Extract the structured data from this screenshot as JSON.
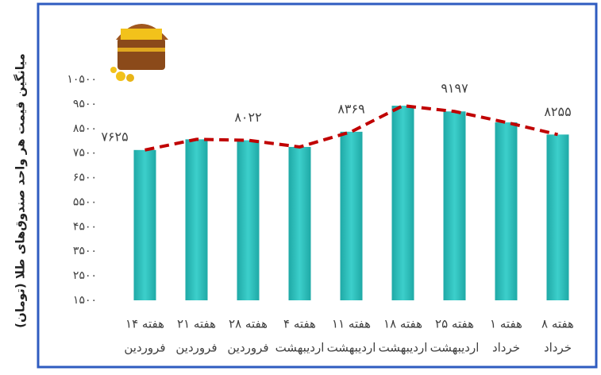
{
  "chart_data": {
    "type": "bar",
    "y_axis_label": "میانگین قیمت هر واحد صندوق‌های طلا (تومان)",
    "categories": [
      [
        "هفته ۱۴",
        "فروردین"
      ],
      [
        "هفته ۲۱",
        "فروردین"
      ],
      [
        "هفته ۲۸",
        "فروردین"
      ],
      [
        "هفته ۴",
        "اردیبهشت"
      ],
      [
        "هفته ۱۱",
        "اردیبهشت"
      ],
      [
        "هفته ۱۸",
        "اردیبهشت"
      ],
      [
        "هفته ۲۵",
        "اردیبهشت"
      ],
      [
        "هفته ۱",
        "خرداد"
      ],
      [
        "هفته ۸",
        "خرداد"
      ]
    ],
    "values": [
      7625,
      8060,
      8022,
      7750,
      8369,
      9430,
      9197,
      8750,
      8255
    ],
    "value_labels": [
      "۷۶۲۵",
      null,
      "۸۰۲۲",
      null,
      "۸۳۶۹",
      null,
      "۹۱۹۷",
      null,
      "۸۲۵۵"
    ],
    "color": "#2bb8b4",
    "line_color": "#c00000",
    "ylim": [
      1500,
      10500
    ],
    "yticks": [
      {
        "value": 1500,
        "label": "۱۵۰۰"
      },
      {
        "value": 2500,
        "label": "۲۵۰۰"
      },
      {
        "value": 3500,
        "label": "۳۵۰۰"
      },
      {
        "value": 4500,
        "label": "۴۵۰۰"
      },
      {
        "value": 5500,
        "label": "۵۵۰۰"
      },
      {
        "value": 6500,
        "label": "۶۵۰۰"
      },
      {
        "value": 7500,
        "label": "۷۵۰۰"
      },
      {
        "value": 8500,
        "label": "۸۵۰۰"
      },
      {
        "value": 9500,
        "label": "۹۵۰۰"
      },
      {
        "value": 10500,
        "label": "۱۰۵۰۰"
      }
    ]
  }
}
